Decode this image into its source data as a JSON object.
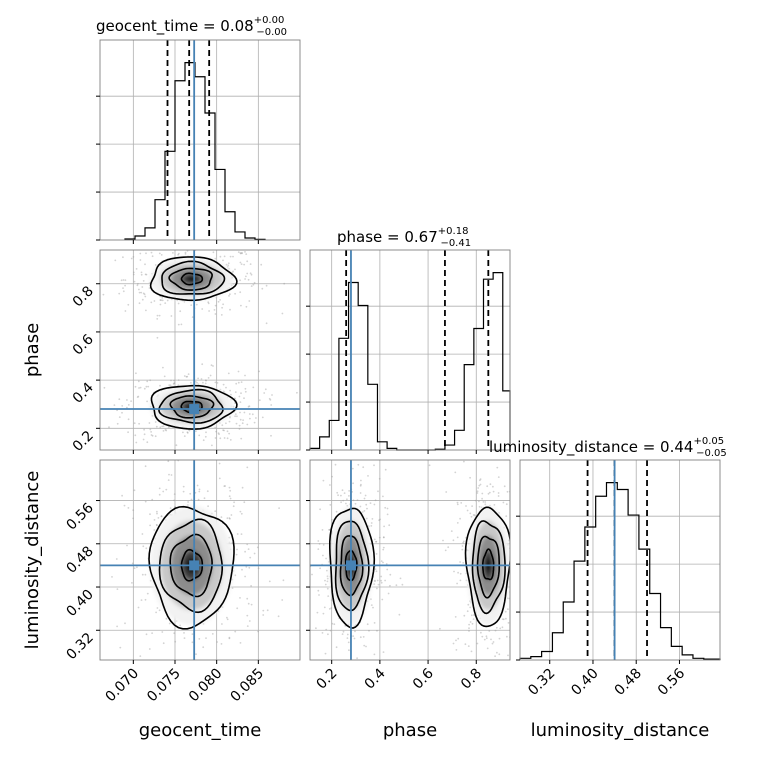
{
  "chart_data": {
    "type": "corner",
    "parameters": [
      "geocent_time",
      "phase",
      "luminosity_distance"
    ],
    "axis_labels": {
      "geocent_time": "geocent_time",
      "phase": "phase",
      "luminosity_distance": "luminosity_distance"
    },
    "ranges": {
      "geocent_time": [
        0.066,
        0.09
      ],
      "phase": [
        0.11,
        0.94
      ],
      "luminosity_distance": [
        0.265,
        0.635
      ]
    },
    "ticks": {
      "geocent_time": [
        "0.070",
        "0.075",
        "0.080",
        "0.085"
      ],
      "phase": [
        "0.2",
        "0.4",
        "0.6",
        "0.8"
      ],
      "luminosity_distance": [
        "0.32",
        "0.40",
        "0.48",
        "0.56"
      ]
    },
    "titles": [
      {
        "main": "geocent_time = 0.08",
        "plus": "+0.00",
        "minus": "−0.00"
      },
      {
        "main": "phase = 0.67",
        "plus": "+0.18",
        "minus": "−0.41"
      },
      {
        "main": "luminosity_distance = 0.44",
        "plus": "+0.05",
        "minus": "−0.05"
      }
    ],
    "truths": {
      "geocent_time": 0.0773,
      "phase": 0.28,
      "luminosity_distance": 0.44
    },
    "quantiles": {
      "geocent_time": [
        0.0741,
        0.0767,
        0.0791
      ],
      "phase": [
        0.26,
        0.67,
        0.85
      ],
      "luminosity_distance": [
        0.39,
        0.44,
        0.5
      ]
    },
    "histograms": {
      "geocent_time": {
        "edges": [
          0.069,
          0.0702,
          0.0714,
          0.0726,
          0.0738,
          0.075,
          0.0762,
          0.0774,
          0.0786,
          0.0798,
          0.081,
          0.0822,
          0.0834,
          0.0846,
          0.0858
        ],
        "counts": [
          0.5,
          2,
          6,
          20,
          44,
          79,
          88,
          81,
          63,
          35,
          14,
          4,
          1,
          0.3
        ]
      },
      "phase": {
        "edges": [
          0.11,
          0.15,
          0.19,
          0.23,
          0.27,
          0.31,
          0.35,
          0.39,
          0.43,
          0.47,
          0.51,
          0.55,
          0.59,
          0.63,
          0.67,
          0.71,
          0.75,
          0.79,
          0.83,
          0.87,
          0.91,
          0.94
        ],
        "counts": [
          1,
          8,
          18,
          68,
          102,
          88,
          40,
          5,
          1,
          0,
          0,
          0,
          0,
          0.5,
          3,
          12,
          52,
          74,
          104,
          108,
          36
        ]
      },
      "luminosity_distance": {
        "edges": [
          0.265,
          0.285,
          0.305,
          0.325,
          0.345,
          0.365,
          0.385,
          0.405,
          0.425,
          0.445,
          0.465,
          0.485,
          0.505,
          0.525,
          0.545,
          0.565,
          0.585,
          0.605,
          0.635
        ],
        "counts": [
          1,
          2,
          5,
          16,
          34,
          58,
          78,
          96,
          104,
          100,
          85,
          65,
          39,
          19,
          8,
          3,
          1,
          0.5
        ]
      }
    },
    "density_blobs": [
      {
        "x_param": "geocent_time",
        "y_param": "phase",
        "cx": 0.077,
        "cy": 0.82,
        "sx": 0.0025,
        "sy": 0.045
      },
      {
        "x_param": "geocent_time",
        "y_param": "phase",
        "cx": 0.077,
        "cy": 0.29,
        "sx": 0.0025,
        "sy": 0.045
      },
      {
        "x_param": "geocent_time",
        "y_param": "luminosity_distance",
        "cx": 0.077,
        "cy": 0.44,
        "sx": 0.0025,
        "sy": 0.055
      },
      {
        "x_param": "phase",
        "y_param": "luminosity_distance",
        "cx": 0.28,
        "cy": 0.44,
        "sx": 0.045,
        "sy": 0.055
      },
      {
        "x_param": "phase",
        "y_param": "luminosity_distance",
        "cx": 0.85,
        "cy": 0.44,
        "sx": 0.045,
        "sy": 0.055
      }
    ],
    "contour_levels_sigma": [
      0.5,
      1.0,
      1.5,
      2.0
    ],
    "colors": {
      "truth": "#4682b4",
      "contour": "#000000",
      "grid": "#b0b0b0",
      "scatter": "#9e9e9e"
    }
  }
}
